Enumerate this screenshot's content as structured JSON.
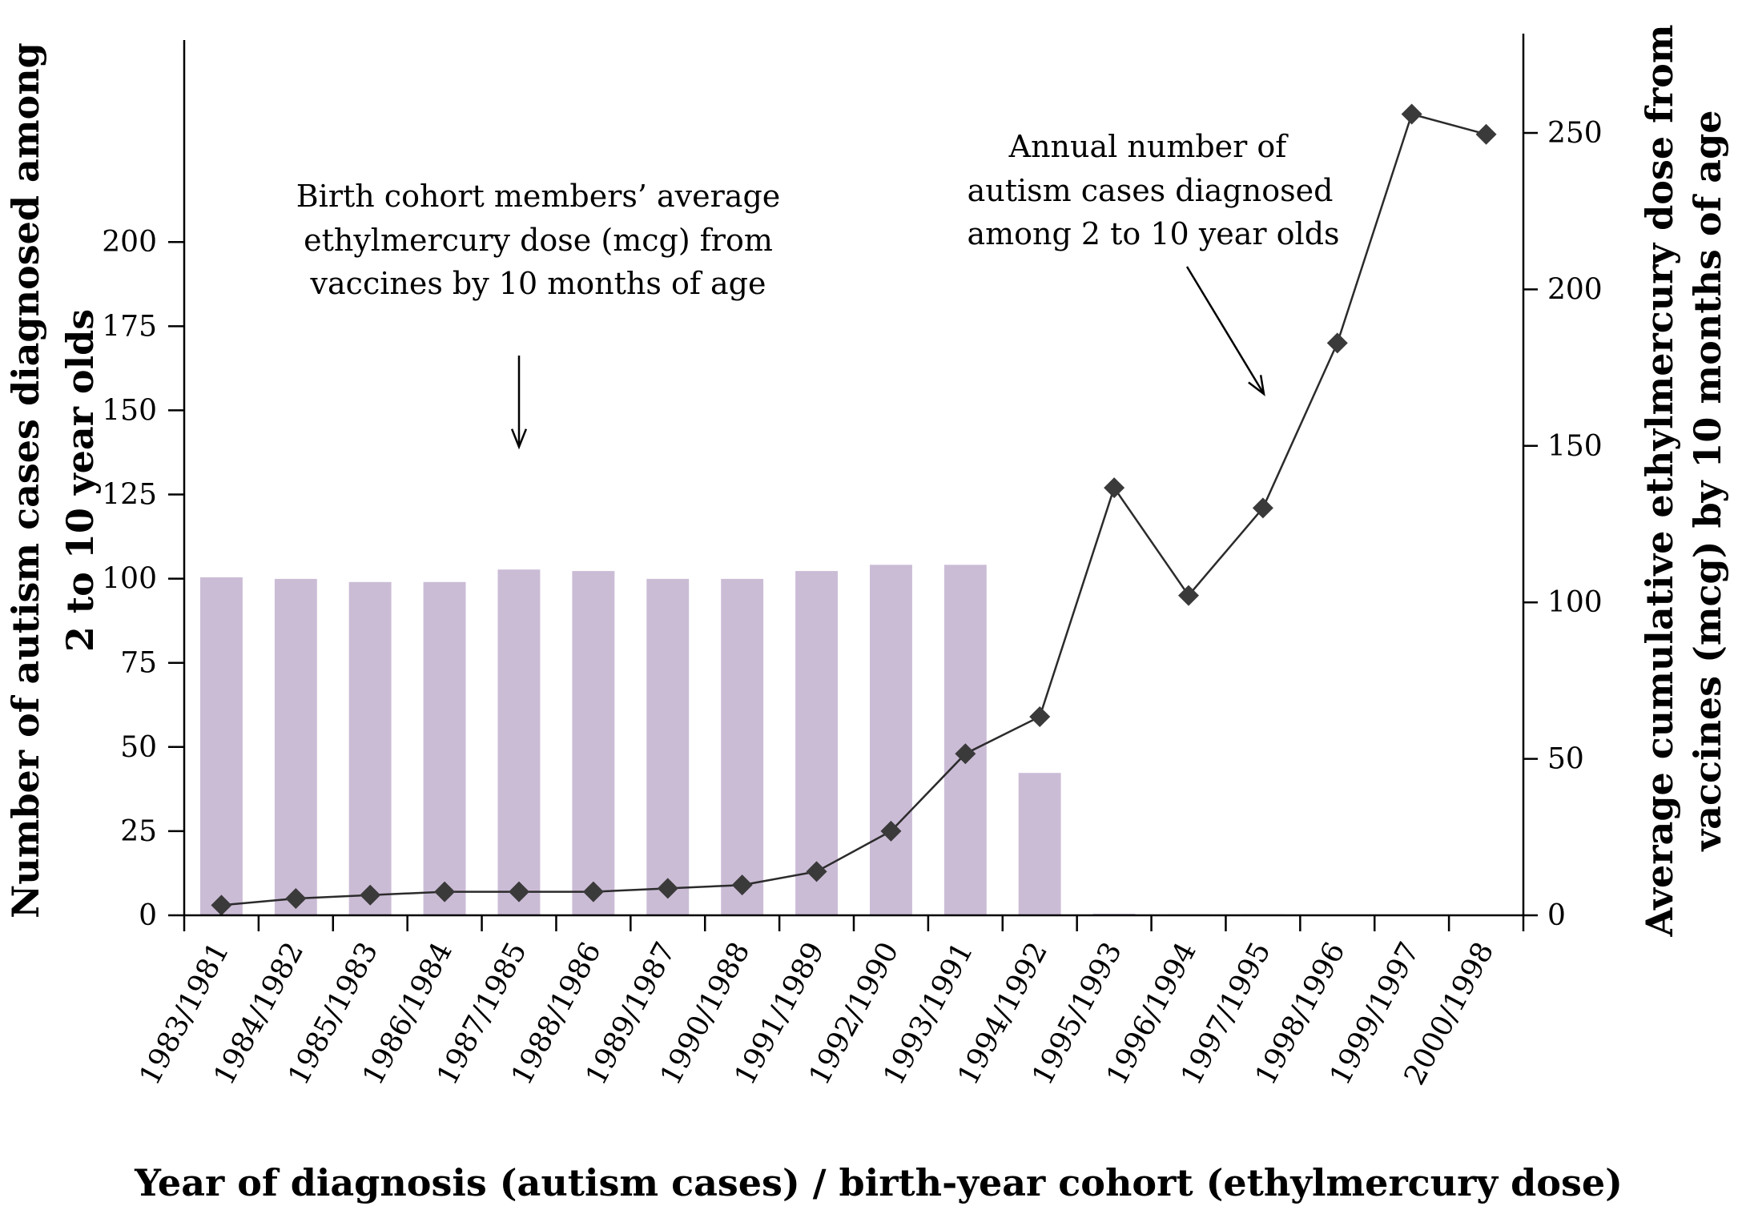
{
  "chart_data": {
    "type": "bar",
    "categories": [
      "1983/1981",
      "1984/1982",
      "1985/1983",
      "1986/1984",
      "1987/1985",
      "1988/1986",
      "1989/1987",
      "1990/1988",
      "1991/1989",
      "1992/1990",
      "1993/1991",
      "1994/1992",
      "1995/1993",
      "1996/1994",
      "1997/1995",
      "1998/1996",
      "1999/1997",
      "2000/1998"
    ],
    "series": [
      {
        "type": "bar",
        "axis": "right",
        "values": [
          108,
          107.5,
          106.5,
          106.5,
          110.5,
          110,
          107.5,
          107.5,
          110,
          112,
          112,
          45.5,
          0.5,
          0.3,
          0.3,
          0.2,
          0.2,
          0.1
        ]
      },
      {
        "type": "line",
        "axis": "left",
        "values": [
          3,
          5,
          6,
          7,
          7,
          7,
          8,
          9,
          13,
          25,
          48,
          59,
          127,
          95,
          121,
          170,
          238,
          232
        ]
      }
    ],
    "ylabel": "Number of autism cases diagnosed among 2 to 10 year olds",
    "ylabel_lines": [
      "Number of autism cases diagnosed among",
      "2 to 10 year olds"
    ],
    "y2label": "Average cumulative ethylmercury dose from vaccines (mcg) by 10 months of age",
    "y2label_lines": [
      "Average cumulative ethylmercury dose from",
      "vaccines (mcg) by 10 months of age"
    ],
    "xlabel": "Year of diagnosis (autism cases) / birth-year cohort (ethylmercury dose)",
    "ylim": [
      0,
      260
    ],
    "y2lim": [
      0,
      225
    ],
    "yticks": [
      0,
      25,
      50,
      75,
      100,
      125,
      150,
      175,
      200
    ],
    "y2ticks": [
      0,
      50,
      100,
      150,
      200,
      250
    ],
    "annotations": [
      {
        "id": "dose-annotation",
        "lines": [
          "Birth cohort members’ average",
          "ethylmercury dose (mcg) from",
          "vaccines by 10 months of age"
        ]
      },
      {
        "id": "cases-annotation",
        "lines": [
          "Annual number of",
          "autism cases diagnosed",
          "among 2 to 10 year olds"
        ]
      }
    ],
    "bar_color": "#cbbcd6",
    "line_color": "#2b2b2b",
    "marker_color": "#3a3a3a",
    "grid": false,
    "legend": "none"
  }
}
